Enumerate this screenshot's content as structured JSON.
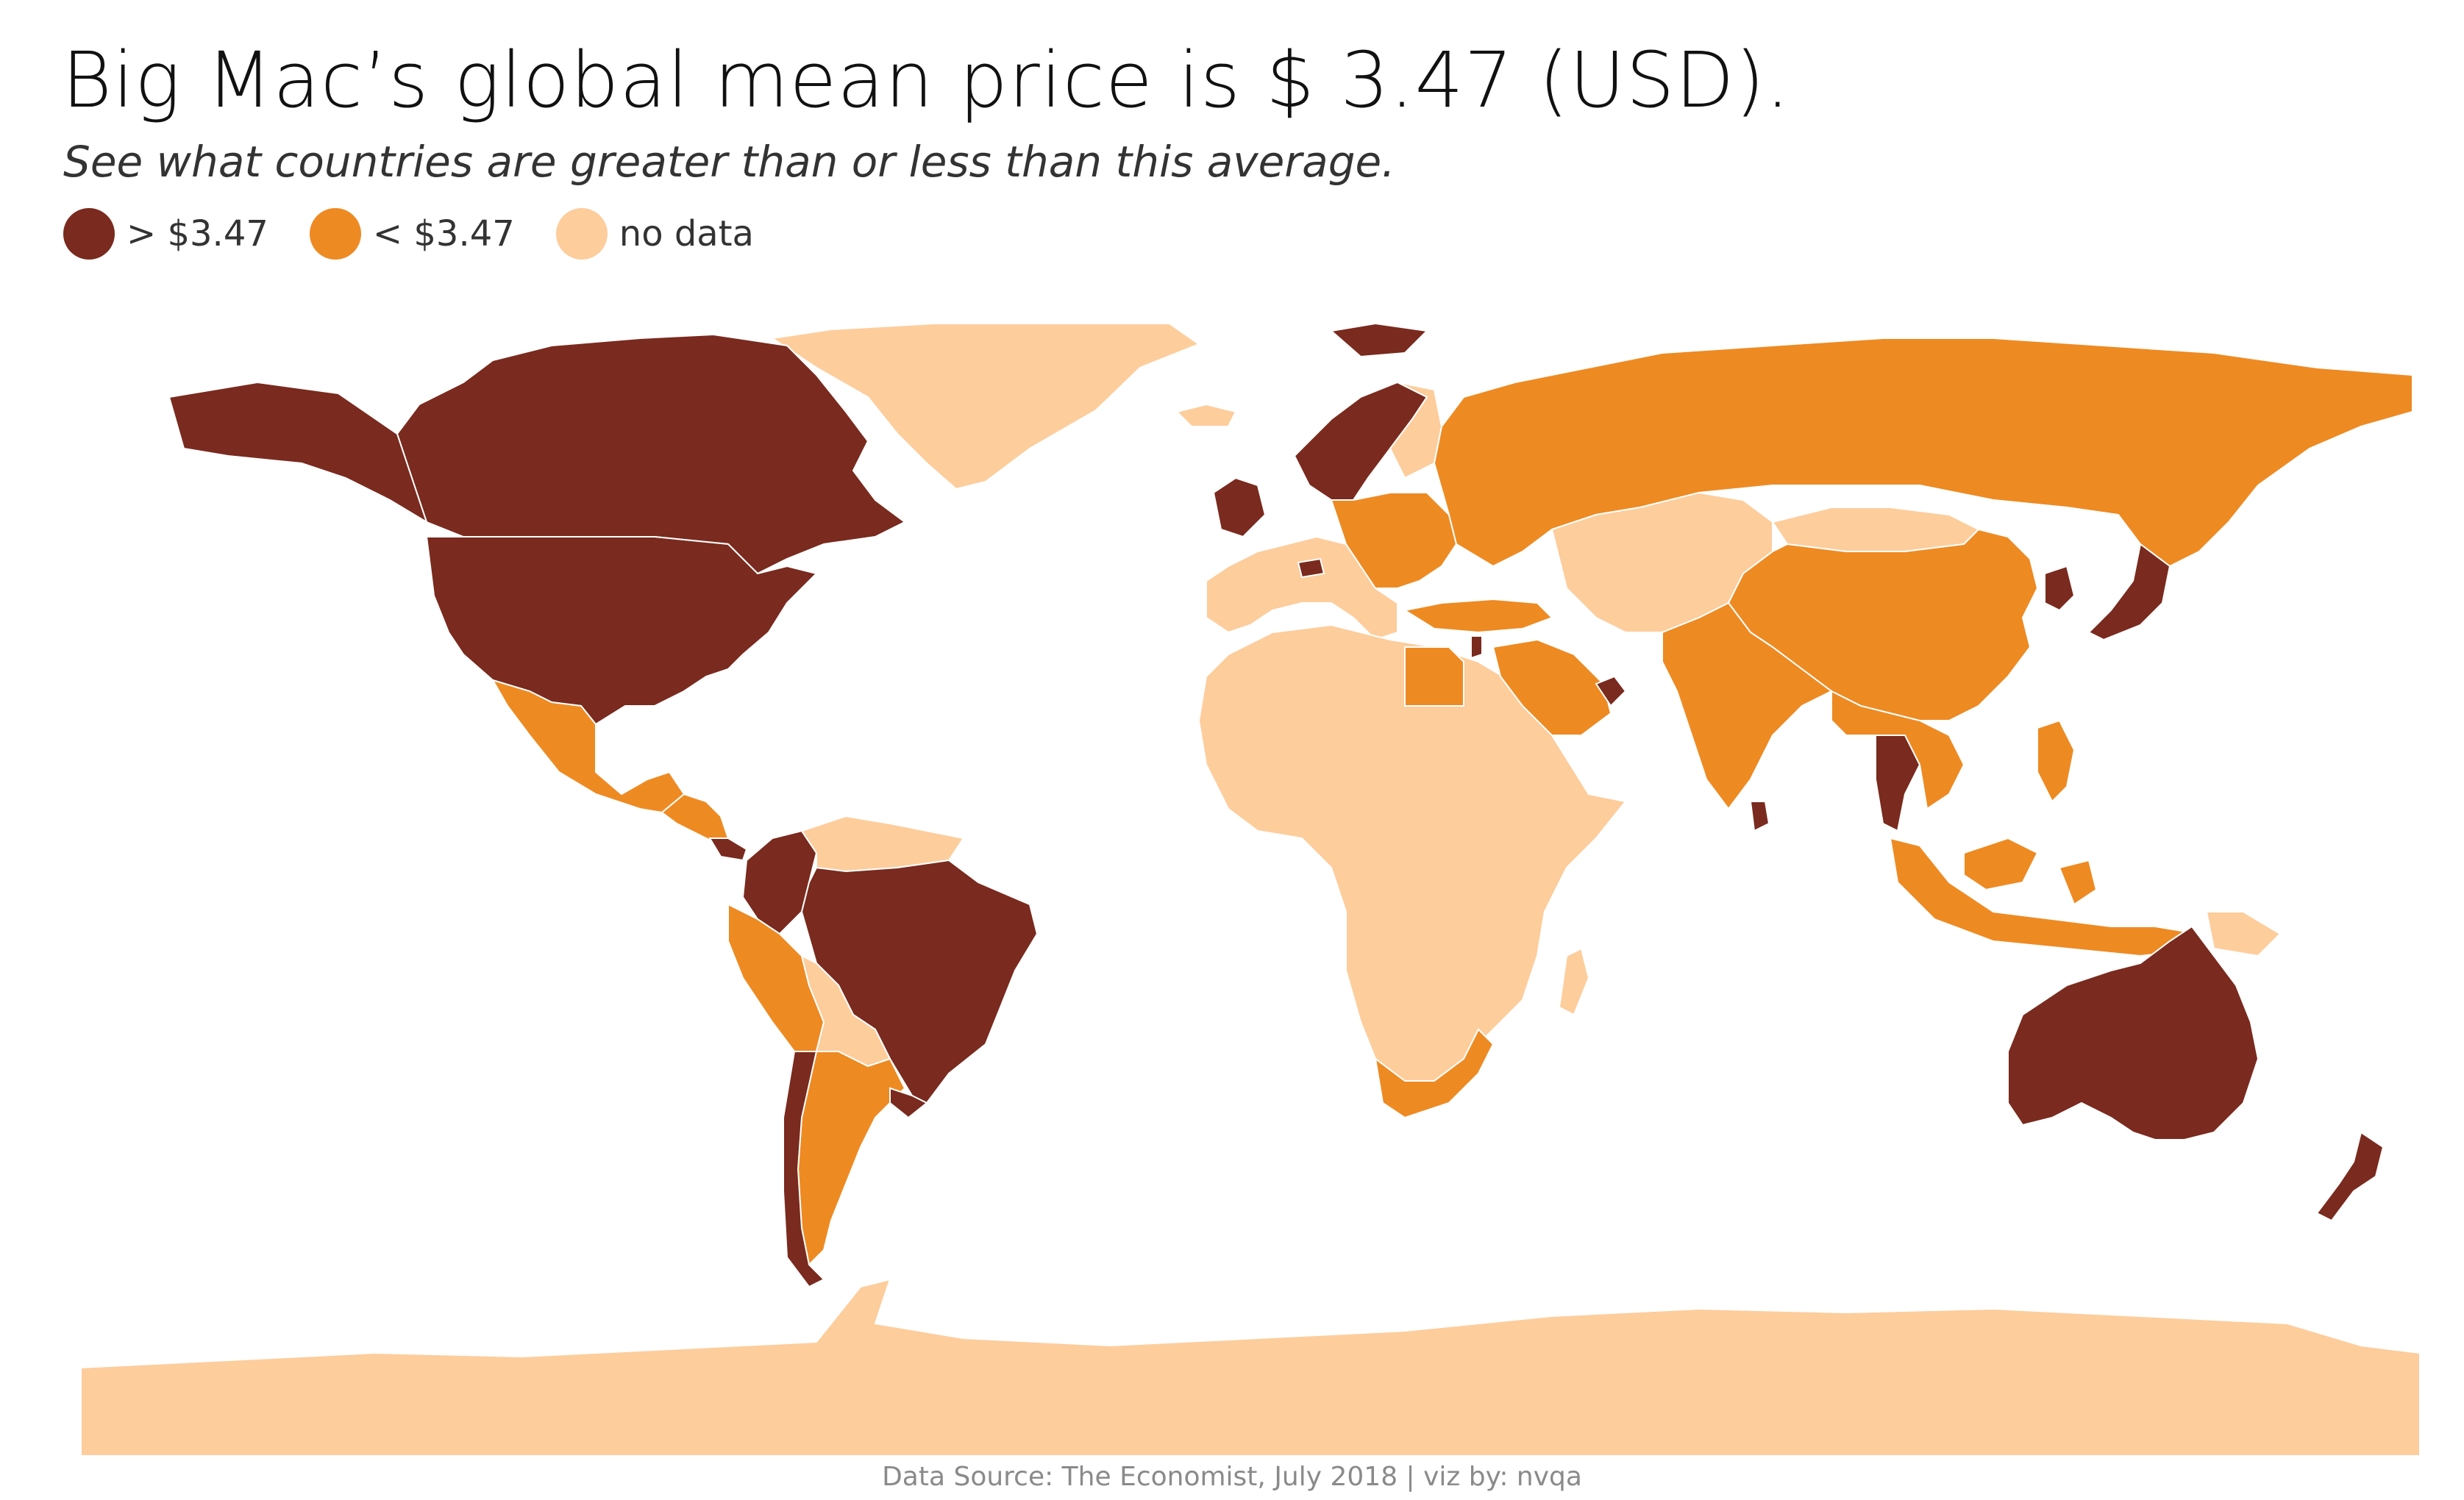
{
  "header": {
    "title": "Big Mac’s global mean price is $ 3.47 (USD).",
    "subtitle": "See what countries are greater than or less than this average."
  },
  "legend": {
    "items": [
      {
        "label": "> $3.47",
        "color": "#7a2a1e"
      },
      {
        "label": "< $3.47",
        "color": "#ee8a22"
      },
      {
        "label": "no data",
        "color": "#fdcd9c"
      }
    ]
  },
  "map": {
    "colors": {
      "above": "#7a2a1e",
      "below": "#ee8a22",
      "nodata": "#fdcd9c",
      "background": "#ffffff"
    },
    "regions": [
      {
        "name": "greenland",
        "category": "nodata"
      },
      {
        "name": "canada",
        "category": "above"
      },
      {
        "name": "united-states",
        "category": "above"
      },
      {
        "name": "alaska",
        "category": "above"
      },
      {
        "name": "mexico",
        "category": "below"
      },
      {
        "name": "central-america",
        "category": "below"
      },
      {
        "name": "costa-rica",
        "category": "above"
      },
      {
        "name": "colombia",
        "category": "above"
      },
      {
        "name": "venezuela-guianas",
        "category": "nodata"
      },
      {
        "name": "peru",
        "category": "below"
      },
      {
        "name": "brazil",
        "category": "above"
      },
      {
        "name": "bolivia",
        "category": "nodata"
      },
      {
        "name": "argentina",
        "category": "below"
      },
      {
        "name": "chile",
        "category": "above"
      },
      {
        "name": "uruguay",
        "category": "above"
      },
      {
        "name": "iceland",
        "category": "nodata"
      },
      {
        "name": "united-kingdom",
        "category": "above"
      },
      {
        "name": "scandinavia",
        "category": "above"
      },
      {
        "name": "finland",
        "category": "nodata"
      },
      {
        "name": "svalbard",
        "category": "above"
      },
      {
        "name": "western-europe",
        "category": "nodata"
      },
      {
        "name": "switzerland",
        "category": "above"
      },
      {
        "name": "eastern-europe",
        "category": "below"
      },
      {
        "name": "turkey",
        "category": "below"
      },
      {
        "name": "russia",
        "category": "below"
      },
      {
        "name": "kazakhstan-central-asia",
        "category": "nodata"
      },
      {
        "name": "mongolia",
        "category": "nodata"
      },
      {
        "name": "china",
        "category": "below"
      },
      {
        "name": "india",
        "category": "below"
      },
      {
        "name": "sri-lanka",
        "category": "above"
      },
      {
        "name": "japan",
        "category": "above"
      },
      {
        "name": "korea",
        "category": "above"
      },
      {
        "name": "thailand",
        "category": "above"
      },
      {
        "name": "southeast-asia-mainland",
        "category": "below"
      },
      {
        "name": "malaysia-indonesia",
        "category": "below"
      },
      {
        "name": "philippines",
        "category": "below"
      },
      {
        "name": "papua-new-guinea",
        "category": "nodata"
      },
      {
        "name": "australia",
        "category": "above"
      },
      {
        "name": "new-zealand",
        "category": "above"
      },
      {
        "name": "africa",
        "category": "nodata"
      },
      {
        "name": "egypt",
        "category": "below"
      },
      {
        "name": "saudi-arabia",
        "category": "below"
      },
      {
        "name": "uae",
        "category": "above"
      },
      {
        "name": "israel",
        "category": "above"
      },
      {
        "name": "south-africa",
        "category": "below"
      },
      {
        "name": "madagascar",
        "category": "nodata"
      },
      {
        "name": "antarctica",
        "category": "nodata"
      }
    ]
  },
  "footer": {
    "source": "Data Source: The Economist, July 2018 | viz by: nvqa"
  }
}
